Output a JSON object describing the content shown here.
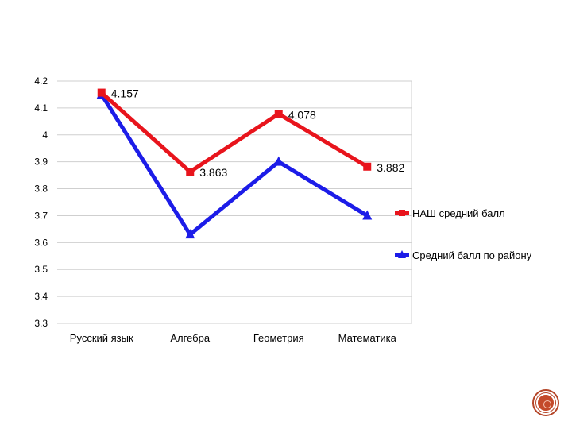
{
  "chart_data": {
    "type": "line",
    "categories": [
      "Русский язык",
      "Алгебра",
      "Геометрия",
      "Математика"
    ],
    "ylim": [
      3.3,
      4.2
    ],
    "yticks": [
      "4.2",
      "4.1",
      "4",
      "3.9",
      "3.8",
      "3.7",
      "3.6",
      "3.5",
      "3.4",
      "3.3"
    ],
    "grid": true,
    "legend_position": "right",
    "series": [
      {
        "name": "НАШ средний балл",
        "color": "#e8141c",
        "marker": "square",
        "values": [
          4.157,
          3.863,
          4.078,
          3.882
        ],
        "labels": [
          "4.157",
          "3.863",
          "4.078",
          "3.882"
        ]
      },
      {
        "name": "Средний балл по району",
        "color": "#1c1ce8",
        "marker": "triangle",
        "values": [
          4.15,
          3.63,
          3.9,
          3.7
        ]
      }
    ]
  }
}
